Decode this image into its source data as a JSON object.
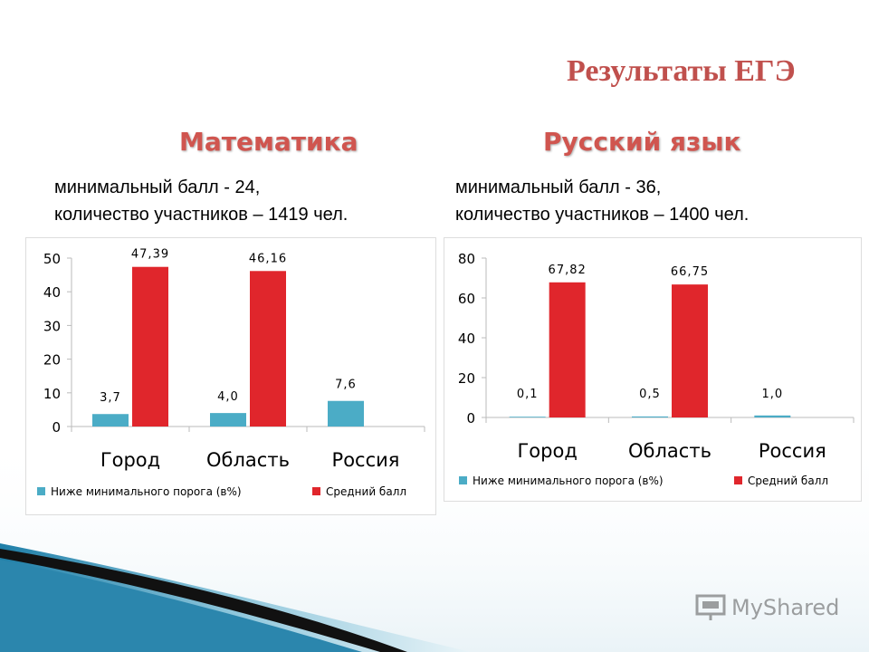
{
  "slide": {
    "title": "Результаты ЕГЭ",
    "logo_text": "MyShared",
    "logo_icon": "presentation-icon"
  },
  "math": {
    "subject": "Математика",
    "info_line1": "минимальный балл - 24,",
    "info_line2": "количество участников – 1419 чел."
  },
  "russian": {
    "subject": "Русский язык",
    "info_line1": "минимальный балл - 36,",
    "info_line2": "количество участников – 1400 чел."
  },
  "chart_data": [
    {
      "type": "bar",
      "categories": [
        "Город",
        "Область",
        "Россия"
      ],
      "series": [
        {
          "name": "Ниже минимального порога (в%)",
          "values": [
            3.7,
            4.0,
            7.6
          ],
          "labels": [
            "3,7",
            "4,0",
            "7,6"
          ],
          "color": "#4bacc6"
        },
        {
          "name": "Средний балл",
          "values": [
            47.39,
            46.16,
            null
          ],
          "labels": [
            "47,39",
            "46,16",
            ""
          ],
          "color": "#e0262c"
        }
      ],
      "ylim": [
        0,
        50
      ],
      "yticks": [
        0,
        10,
        20,
        30,
        40,
        50
      ],
      "grid": false,
      "legend": "bottom"
    },
    {
      "type": "bar",
      "categories": [
        "Город",
        "Область",
        "Россия"
      ],
      "series": [
        {
          "name": "Ниже минимального порога (в%)",
          "values": [
            0.1,
            0.5,
            1.0
          ],
          "labels": [
            "0,1",
            "0,5",
            "1,0"
          ],
          "color": "#4bacc6"
        },
        {
          "name": "Средний балл",
          "values": [
            67.82,
            66.75,
            null
          ],
          "labels": [
            "67,82",
            "66,75",
            ""
          ],
          "color": "#e0262c"
        }
      ],
      "ylim": [
        0,
        80
      ],
      "yticks": [
        0,
        20,
        40,
        60,
        80
      ],
      "grid": false,
      "legend": "bottom"
    }
  ]
}
